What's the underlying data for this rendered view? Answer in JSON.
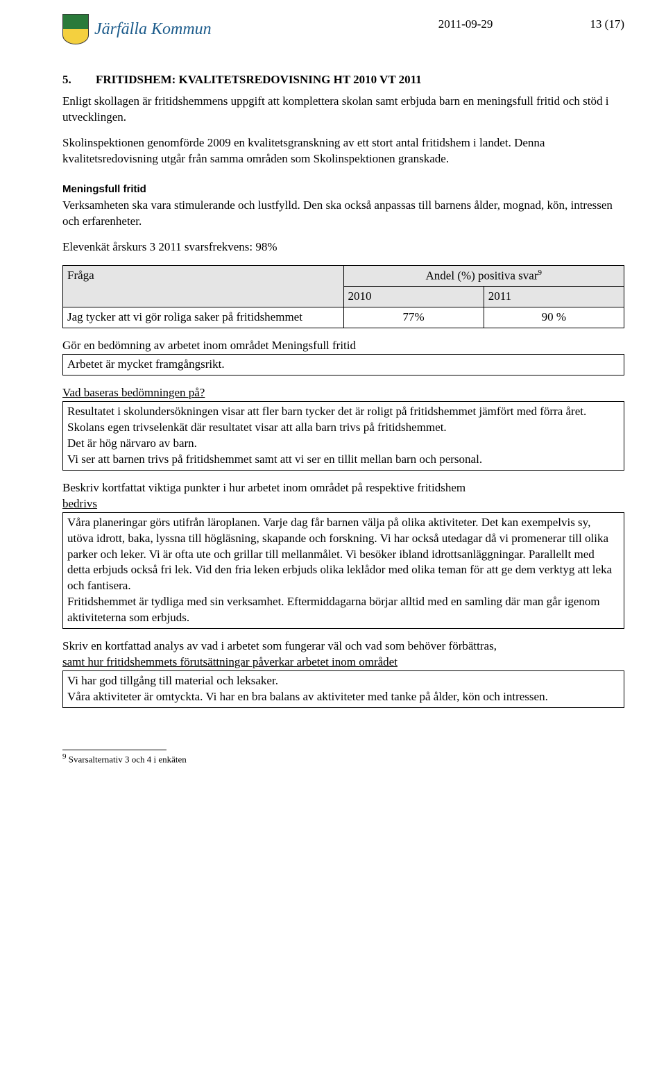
{
  "header": {
    "logo_text": "Järfälla Kommun",
    "date": "2011-09-29",
    "page": "13 (17)"
  },
  "section": {
    "num": "5.",
    "title": "FRITIDSHEM: KVALITETSREDOVISNING HT 2010 VT 2011"
  },
  "intro_p1": "Enligt skollagen är fritidshemmens uppgift att komplettera skolan samt erbjuda barn en meningsfull fritid och stöd i utvecklingen.",
  "intro_p2": "Skolinspektionen genomförde 2009 en kvalitetsgranskning av ett stort antal fritidshem i landet. Denna kvalitetsredovisning utgår från samma områden som Skolinspektionen granskade.",
  "sub1_heading": "Meningsfull fritid",
  "sub1_body": "Verksamheten ska vara stimulerande och lustfylld. Den ska också anpassas till barnens ålder, mognad, kön, intressen och erfarenheter.",
  "survey_line": "Elevenkät årskurs 3 2011 svarsfrekvens: 98%",
  "table1": {
    "h_fraga": "Fråga",
    "h_andel": "Andel (%) positiva svar",
    "h_2010": "2010",
    "h_2011": "2011",
    "row_q": "Jag tycker att vi gör roliga saker på fritidshemmet",
    "row_2010": "77%",
    "row_2011": "90 %"
  },
  "assess1_label": "Gör en bedömning av arbetet inom området Meningsfull fritid",
  "assess1_box": "Arbetet är  mycket framgångsrikt.",
  "basis_label": "Vad baseras bedömningen på?",
  "basis_box": " Resultatet i skolundersökningen visar att fler barn tycker det är roligt på fritidshemmet jämfört med förra året. Skolans egen trivselenkät där resultatet visar att alla barn trivs på fritidshemmet.\nDet är hög närvaro av barn.\nVi ser att barnen trivs på fritidshemmet samt att vi ser en tillit mellan barn och personal.",
  "desc_label": "Beskriv kortfattat viktiga punkter i hur arbetet inom området på respektive fritidshem bedrivs",
  "desc_box": "Våra planeringar görs utifrån läroplanen. Varje dag får barnen välja på olika aktiviteter. Det kan exempelvis  sy, utöva idrott, baka, lyssna till högläsning, skapande och forskning. Vi har också utedagar då vi promenerar till olika parker och leker. Vi är ofta ute och grillar till mellanmålet. Vi besöker ibland idrottsanläggningar.  Parallellt med detta erbjuds också fri lek. Vid den fria leken erbjuds olika leklådor med olika teman för att ge dem verktyg att leka och fantisera.\nFritidshemmet är tydliga med sin verksamhet. Eftermiddagarna börjar alltid med en samling där man går igenom aktiviteterna som erbjuds.",
  "analysis_label": "Skriv en kortfattad analys av vad i arbetet som fungerar väl och vad som behöver förbättras, samt hur fritidshemmets förutsättningar påverkar arbetet inom området",
  "analysis_box": "Vi har god tillgång till material och leksaker.\nVåra aktiviteter är omtyckta. Vi har en bra balans av aktiviteter med tanke på ålder, kön och intressen.",
  "footnote_marker": "9",
  "footnote_text": " Svarsalternativ 3 och 4 i enkäten"
}
